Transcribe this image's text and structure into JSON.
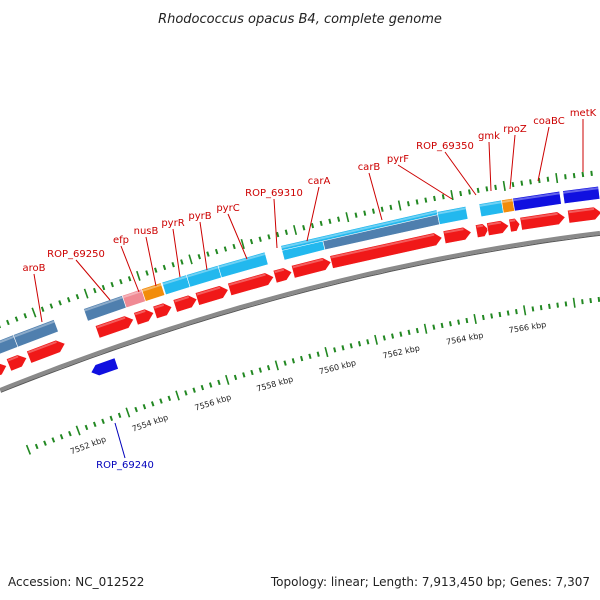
{
  "title": "Rhodococcus opacus B4, complete genome",
  "footer": {
    "accession": "Accession: NC_012522",
    "summary": "Topology: linear; Length: 7,913,450 bp; Genes: 7,307"
  },
  "colors": {
    "cds": "#f01818",
    "gene_light": "#22b8ee",
    "gene_steel": "#4f7fae",
    "gene_orange": "#f28c0a",
    "gene_pink": "#f08a94",
    "gene_dark_blue": "#1010e0",
    "label_red": "#cc0000",
    "label_blue": "#0000bb",
    "tick_green": "#228822",
    "backbone": "#8a8a8a"
  },
  "scale_labels": [
    "7552 kbp",
    "7554 kbp",
    "7556 kbp",
    "7558 kbp",
    "7560 kbp",
    "7562 kbp",
    "7564 kbp",
    "7566 kbp"
  ],
  "gene_labels": [
    {
      "name": "aroB",
      "strand": "forward"
    },
    {
      "name": "ROP_69250",
      "strand": "forward"
    },
    {
      "name": "efp",
      "strand": "forward"
    },
    {
      "name": "nusB",
      "strand": "forward"
    },
    {
      "name": "pyrR",
      "strand": "forward"
    },
    {
      "name": "pyrB",
      "strand": "forward"
    },
    {
      "name": "pyrC",
      "strand": "forward"
    },
    {
      "name": "ROP_69310",
      "strand": "forward"
    },
    {
      "name": "carA",
      "strand": "forward"
    },
    {
      "name": "carB",
      "strand": "forward"
    },
    {
      "name": "pyrF",
      "strand": "forward"
    },
    {
      "name": "ROP_69350",
      "strand": "forward"
    },
    {
      "name": "gmk",
      "strand": "forward"
    },
    {
      "name": "rpoZ",
      "strand": "forward"
    },
    {
      "name": "coaBC",
      "strand": "forward"
    },
    {
      "name": "metK",
      "strand": "forward"
    },
    {
      "name": "ROP_69240",
      "strand": "reverse"
    }
  ]
}
